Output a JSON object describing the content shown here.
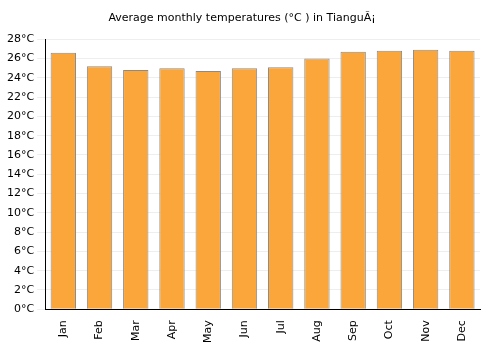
{
  "chart_data": {
    "type": "bar",
    "title": "Average monthly temperatures (°C ) in TianguÃ¡",
    "categories": [
      "Jan",
      "Feb",
      "Mar",
      "Apr",
      "May",
      "Jun",
      "Jul",
      "Aug",
      "Sep",
      "Oct",
      "Nov",
      "Dec"
    ],
    "values": [
      26.6,
      25.2,
      24.8,
      25.0,
      24.7,
      25.0,
      25.1,
      26.0,
      26.7,
      26.8,
      26.9,
      26.8
    ],
    "color": "#fba63a",
    "ylim": [
      0,
      28
    ],
    "yticks": [
      {
        "value": 0,
        "label": "0°C"
      },
      {
        "value": 2,
        "label": "2°C"
      },
      {
        "value": 4,
        "label": "4°C"
      },
      {
        "value": 6,
        "label": "6°C"
      },
      {
        "value": 8,
        "label": "8°C"
      },
      {
        "value": 10,
        "label": "10°C"
      },
      {
        "value": 12,
        "label": "12°C"
      },
      {
        "value": 14,
        "label": "14°C"
      },
      {
        "value": 16,
        "label": "16°C"
      },
      {
        "value": 18,
        "label": "18°C"
      },
      {
        "value": 20,
        "label": "20°C"
      },
      {
        "value": 22,
        "label": "22°C"
      },
      {
        "value": 24,
        "label": "24°C"
      },
      {
        "value": 26,
        "label": "26°C"
      },
      {
        "value": 28,
        "label": "28°C"
      }
    ],
    "grid": true
  }
}
